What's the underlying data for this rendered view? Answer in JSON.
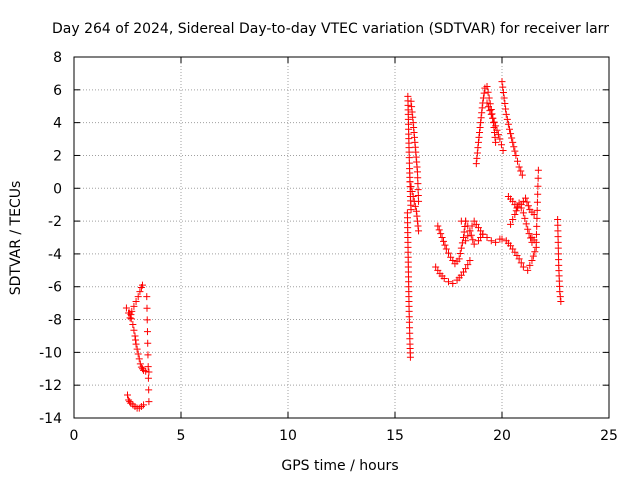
{
  "chart_data": {
    "type": "scatter",
    "title": "Day 264 of 2024, Sidereal Day-to-day VTEC variation (SDTVAR) for receiver larr",
    "xlabel": "GPS time / hours",
    "ylabel": "SDTVAR / TECUs",
    "xlim": [
      0,
      25
    ],
    "ylim": [
      -14,
      8
    ],
    "xticks": [
      0,
      5,
      10,
      15,
      20,
      25
    ],
    "yticks": [
      -14,
      -12,
      -10,
      -8,
      -6,
      -4,
      -2,
      0,
      2,
      4,
      6,
      8
    ],
    "grid": true,
    "marker": "plus",
    "color": "#ff0000",
    "segments": [
      {
        "x": [
          2.45,
          2.55,
          2.62,
          2.7,
          2.8,
          2.9,
          3.0,
          3.08,
          3.15,
          3.2
        ],
        "y": [
          -7.3,
          -7.6,
          -7.9,
          -7.5,
          -7.2,
          -6.9,
          -6.6,
          -6.3,
          -6.05,
          -5.9
        ]
      },
      {
        "x": [
          2.6,
          2.75,
          2.85,
          2.9,
          2.95,
          3.0,
          3.05,
          3.1,
          3.15,
          3.2,
          3.25,
          3.35,
          3.5
        ],
        "y": [
          -7.6,
          -8.3,
          -9.0,
          -9.5,
          -9.8,
          -10.1,
          -10.4,
          -10.7,
          -10.9,
          -11.0,
          -11.1,
          -11.15,
          -11.2
        ]
      },
      {
        "x": [
          2.5,
          2.55,
          2.6,
          2.65,
          2.75,
          2.85,
          2.95,
          3.05,
          3.15,
          3.25
        ],
        "y": [
          -12.6,
          -12.9,
          -13.0,
          -13.1,
          -13.2,
          -13.3,
          -13.4,
          -13.4,
          -13.3,
          -13.2
        ]
      },
      {
        "x": [
          3.4,
          3.5
        ],
        "y": [
          -6.6,
          -13.0
        ]
      },
      {
        "x": [
          15.6,
          15.62,
          15.64,
          15.66,
          15.68,
          15.7,
          15.72,
          15.75
        ],
        "y": [
          5.6,
          4.5,
          3.3,
          2.2,
          1.2,
          0.4,
          -0.5,
          -1.3
        ]
      },
      {
        "x": [
          15.58,
          15.6,
          15.62,
          15.64,
          15.66,
          15.68,
          15.7,
          15.72
        ],
        "y": [
          -1.5,
          -3.0,
          -4.5,
          -6.0,
          -7.5,
          -8.5,
          -9.5,
          -10.3
        ]
      },
      {
        "x": [
          15.7,
          15.8,
          15.9,
          16.0,
          16.05,
          16.1
        ],
        "y": [
          0.4,
          -0.2,
          -0.8,
          -1.4,
          -2.0,
          -2.6
        ]
      },
      {
        "x": [
          15.75,
          15.85,
          15.95,
          16.05,
          16.1
        ],
        "y": [
          5.3,
          4.0,
          2.5,
          1.0,
          -0.8
        ]
      },
      {
        "x": [
          17.0,
          17.2,
          17.4,
          17.6,
          17.8,
          18.0,
          18.2,
          18.3
        ],
        "y": [
          -2.3,
          -3.0,
          -3.7,
          -4.2,
          -4.6,
          -4.3,
          -3.0,
          -2.0
        ]
      },
      {
        "x": [
          16.9,
          17.1,
          17.3,
          17.5,
          17.7,
          17.9,
          18.1,
          18.3,
          18.5
        ],
        "y": [
          -4.8,
          -5.2,
          -5.5,
          -5.7,
          -5.8,
          -5.6,
          -5.3,
          -4.9,
          -4.4
        ]
      },
      {
        "x": [
          18.3,
          18.5,
          18.7,
          18.9,
          19.1,
          19.3,
          19.5,
          19.7,
          19.9
        ],
        "y": [
          -3.2,
          -2.6,
          -2.0,
          -2.4,
          -2.8,
          -3.0,
          -3.2,
          -3.3,
          -3.1
        ]
      },
      {
        "x": [
          18.1,
          18.3,
          18.5,
          18.7,
          18.9,
          19.1
        ],
        "y": [
          -2.0,
          -2.0,
          -2.6,
          -3.4,
          -3.2,
          -2.8
        ]
      },
      {
        "x": [
          18.8,
          18.9,
          19.0,
          19.1,
          19.2,
          19.3,
          19.4,
          19.5,
          19.6,
          19.7
        ],
        "y": [
          1.5,
          2.8,
          4.0,
          5.2,
          6.1,
          6.2,
          5.5,
          4.8,
          4.0,
          2.8
        ]
      },
      {
        "x": [
          19.3,
          19.5,
          19.7,
          19.9,
          20.05
        ],
        "y": [
          5.2,
          4.5,
          3.8,
          3.0,
          2.3
        ]
      },
      {
        "x": [
          20.0,
          20.1,
          20.2,
          20.35,
          20.5,
          20.65,
          20.8,
          20.95
        ],
        "y": [
          6.5,
          5.5,
          4.5,
          3.6,
          2.8,
          2.0,
          1.3,
          0.8
        ]
      },
      {
        "x": [
          20.3,
          20.5,
          20.7,
          20.9,
          21.1,
          21.3,
          21.5
        ],
        "y": [
          -0.5,
          -0.8,
          -1.2,
          -1.0,
          -0.6,
          -1.3,
          -1.6
        ]
      },
      {
        "x": [
          20.0,
          20.2,
          20.4,
          20.6,
          20.8,
          21.0,
          21.2,
          21.4,
          21.6
        ],
        "y": [
          -3.1,
          -3.2,
          -3.5,
          -3.9,
          -4.3,
          -4.8,
          -5.0,
          -4.4,
          -3.6
        ]
      },
      {
        "x": [
          20.4,
          20.6,
          20.8,
          21.0,
          21.2,
          21.4
        ],
        "y": [
          -2.2,
          -1.6,
          -0.9,
          -1.5,
          -2.5,
          -3.3
        ]
      },
      {
        "x": [
          21.4,
          21.6,
          21.7
        ],
        "y": [
          -3.0,
          -3.3,
          1.1
        ]
      },
      {
        "x": [
          22.6,
          22.65,
          22.7,
          22.75
        ],
        "y": [
          -1.9,
          -4.7,
          -6.3,
          -6.9
        ]
      }
    ]
  }
}
